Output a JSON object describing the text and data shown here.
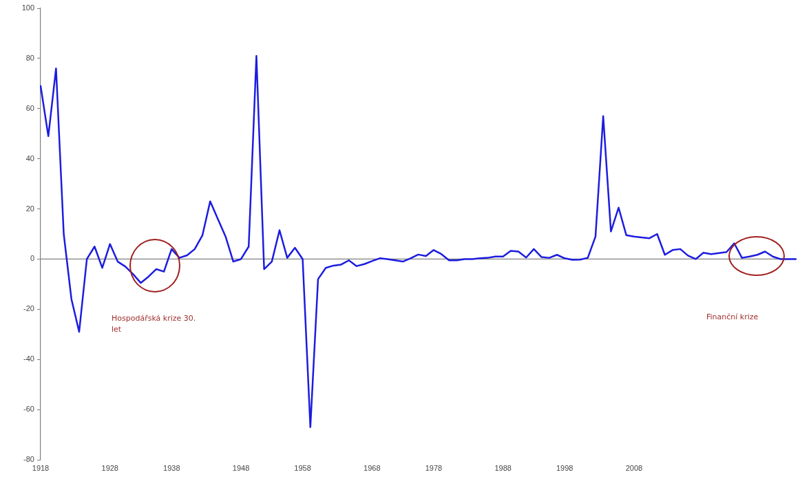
{
  "chart_data": {
    "type": "line",
    "categories": [
      "1918",
      null,
      null,
      null,
      null,
      null,
      null,
      null,
      null,
      "1928",
      null,
      null,
      null,
      null,
      null,
      null,
      null,
      "1938",
      null,
      null,
      null,
      null,
      null,
      null,
      null,
      null,
      "1948",
      null,
      null,
      null,
      null,
      null,
      null,
      null,
      "1958",
      null,
      null,
      null,
      null,
      null,
      null,
      null,
      null,
      "1968",
      null,
      null,
      null,
      null,
      null,
      null,
      null,
      "1978",
      null,
      null,
      null,
      null,
      null,
      null,
      null,
      null,
      "1988",
      null,
      null,
      null,
      null,
      null,
      null,
      null,
      "1998",
      null,
      null,
      null,
      null,
      null,
      null,
      null,
      null,
      "2008",
      null,
      null,
      null,
      null,
      null,
      null,
      null,
      null,
      null,
      null,
      null,
      null,
      null,
      null,
      null,
      null,
      null,
      null,
      null,
      null,
      null
    ],
    "series": [
      {
        "color": "#1c1ce0",
        "values": [
          69,
          49,
          76,
          10,
          -16,
          -29,
          0,
          5,
          -3.5,
          6,
          -1,
          -3,
          -6,
          -9.5,
          -7,
          -4,
          -5,
          4,
          0.5,
          1.5,
          4,
          9.5,
          23,
          16,
          9,
          -1,
          0,
          5,
          81,
          -4,
          -1,
          11.5,
          0.5,
          4.5,
          0,
          -67,
          -8,
          -3.5,
          -2.6,
          -2.2,
          -0.5,
          -2.8,
          -2,
          -0.8,
          0.3,
          0,
          -0.5,
          -1,
          0.3,
          1.8,
          1.2,
          3.6,
          2,
          -0.5,
          -0.5,
          0,
          0,
          0.3,
          0.5,
          1,
          1,
          3.3,
          3,
          0.6,
          4,
          0.8,
          0.5,
          1.7,
          0.3,
          -0.3,
          -0.2,
          0.5,
          9,
          57,
          11,
          20.5,
          9.5,
          9,
          8.6,
          8.3,
          10,
          1.7,
          3.6,
          4,
          1.4,
          0,
          2.5,
          2,
          2.4,
          2.8,
          6.3,
          0.5,
          1,
          1.7,
          3,
          1,
          0,
          0,
          0
        ]
      }
    ],
    "ylim": [
      -80,
      100
    ],
    "yticks": [
      -80,
      -60,
      -40,
      -20,
      0,
      20,
      40,
      60,
      80,
      100
    ],
    "grid": false,
    "legend": false,
    "marker": "none",
    "line_style": "solid",
    "ref_lines": [
      {
        "axis": "y",
        "value": 0,
        "color": "#808080"
      }
    ],
    "annotations": [
      "Hospodářská krize 30. let",
      "Finanční krize"
    ]
  }
}
